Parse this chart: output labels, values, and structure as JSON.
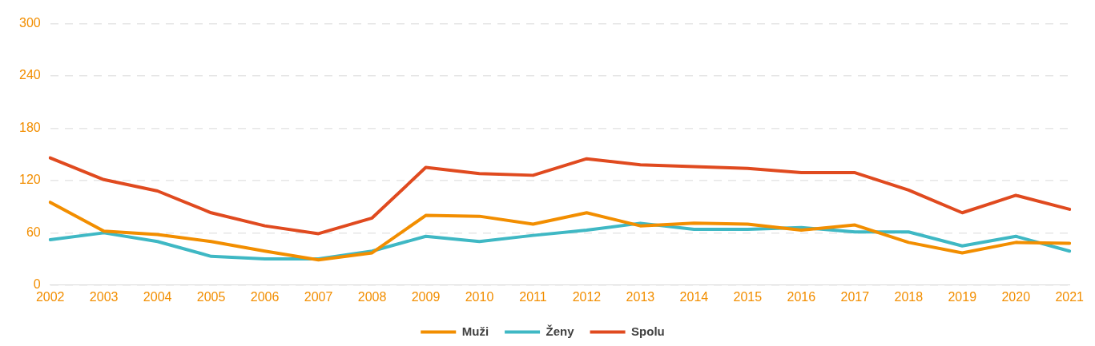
{
  "chart_data": {
    "type": "line",
    "categories": [
      "2002",
      "2003",
      "2004",
      "2005",
      "2006",
      "2007",
      "2008",
      "2009",
      "2010",
      "2011",
      "2012",
      "2013",
      "2014",
      "2015",
      "2016",
      "2017",
      "2018",
      "2019",
      "2020",
      "2021"
    ],
    "series": [
      {
        "name": "Muži",
        "color": "#f28e00",
        "values": [
          95,
          62,
          58,
          50,
          39,
          29,
          37,
          80,
          79,
          70,
          83,
          68,
          71,
          70,
          63,
          69,
          49,
          37,
          49,
          48
        ]
      },
      {
        "name": "Ženy",
        "color": "#3fb8c4",
        "values": [
          52,
          60,
          50,
          33,
          30,
          30,
          39,
          56,
          50,
          57,
          63,
          71,
          64,
          64,
          66,
          61,
          61,
          45,
          56,
          39
        ]
      },
      {
        "name": "Spolu",
        "color": "#e04a1f",
        "values": [
          146,
          121,
          108,
          83,
          68,
          59,
          77,
          135,
          128,
          126,
          145,
          138,
          136,
          134,
          129,
          129,
          109,
          83,
          103,
          87
        ]
      }
    ],
    "ylim": [
      0,
      300
    ],
    "yticks": [
      0,
      60,
      120,
      180,
      240,
      300
    ],
    "grid": "y",
    "legend": "bottom",
    "marker": "none",
    "line_style": "solid"
  }
}
